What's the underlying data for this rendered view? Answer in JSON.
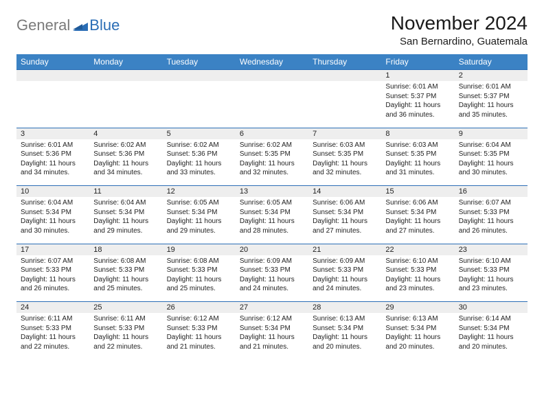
{
  "logo": {
    "part1": "General",
    "part2": "Blue"
  },
  "colors": {
    "header_bg": "#3b82c4",
    "header_text": "#ffffff",
    "daynum_bg": "#eeeeee",
    "row_border": "#2a6db5",
    "logo_gray": "#7a7a7a",
    "logo_blue": "#2a6db5"
  },
  "title": "November 2024",
  "location": "San Bernardino, Guatemala",
  "weekdays": [
    "Sunday",
    "Monday",
    "Tuesday",
    "Wednesday",
    "Thursday",
    "Friday",
    "Saturday"
  ],
  "weeks": [
    {
      "nums": [
        "",
        "",
        "",
        "",
        "",
        "1",
        "2"
      ],
      "cells": [
        {},
        {},
        {},
        {},
        {},
        {
          "sunrise": "Sunrise: 6:01 AM",
          "sunset": "Sunset: 5:37 PM",
          "daylight": "Daylight: 11 hours and 36 minutes."
        },
        {
          "sunrise": "Sunrise: 6:01 AM",
          "sunset": "Sunset: 5:37 PM",
          "daylight": "Daylight: 11 hours and 35 minutes."
        }
      ]
    },
    {
      "nums": [
        "3",
        "4",
        "5",
        "6",
        "7",
        "8",
        "9"
      ],
      "cells": [
        {
          "sunrise": "Sunrise: 6:01 AM",
          "sunset": "Sunset: 5:36 PM",
          "daylight": "Daylight: 11 hours and 34 minutes."
        },
        {
          "sunrise": "Sunrise: 6:02 AM",
          "sunset": "Sunset: 5:36 PM",
          "daylight": "Daylight: 11 hours and 34 minutes."
        },
        {
          "sunrise": "Sunrise: 6:02 AM",
          "sunset": "Sunset: 5:36 PM",
          "daylight": "Daylight: 11 hours and 33 minutes."
        },
        {
          "sunrise": "Sunrise: 6:02 AM",
          "sunset": "Sunset: 5:35 PM",
          "daylight": "Daylight: 11 hours and 32 minutes."
        },
        {
          "sunrise": "Sunrise: 6:03 AM",
          "sunset": "Sunset: 5:35 PM",
          "daylight": "Daylight: 11 hours and 32 minutes."
        },
        {
          "sunrise": "Sunrise: 6:03 AM",
          "sunset": "Sunset: 5:35 PM",
          "daylight": "Daylight: 11 hours and 31 minutes."
        },
        {
          "sunrise": "Sunrise: 6:04 AM",
          "sunset": "Sunset: 5:35 PM",
          "daylight": "Daylight: 11 hours and 30 minutes."
        }
      ]
    },
    {
      "nums": [
        "10",
        "11",
        "12",
        "13",
        "14",
        "15",
        "16"
      ],
      "cells": [
        {
          "sunrise": "Sunrise: 6:04 AM",
          "sunset": "Sunset: 5:34 PM",
          "daylight": "Daylight: 11 hours and 30 minutes."
        },
        {
          "sunrise": "Sunrise: 6:04 AM",
          "sunset": "Sunset: 5:34 PM",
          "daylight": "Daylight: 11 hours and 29 minutes."
        },
        {
          "sunrise": "Sunrise: 6:05 AM",
          "sunset": "Sunset: 5:34 PM",
          "daylight": "Daylight: 11 hours and 29 minutes."
        },
        {
          "sunrise": "Sunrise: 6:05 AM",
          "sunset": "Sunset: 5:34 PM",
          "daylight": "Daylight: 11 hours and 28 minutes."
        },
        {
          "sunrise": "Sunrise: 6:06 AM",
          "sunset": "Sunset: 5:34 PM",
          "daylight": "Daylight: 11 hours and 27 minutes."
        },
        {
          "sunrise": "Sunrise: 6:06 AM",
          "sunset": "Sunset: 5:34 PM",
          "daylight": "Daylight: 11 hours and 27 minutes."
        },
        {
          "sunrise": "Sunrise: 6:07 AM",
          "sunset": "Sunset: 5:33 PM",
          "daylight": "Daylight: 11 hours and 26 minutes."
        }
      ]
    },
    {
      "nums": [
        "17",
        "18",
        "19",
        "20",
        "21",
        "22",
        "23"
      ],
      "cells": [
        {
          "sunrise": "Sunrise: 6:07 AM",
          "sunset": "Sunset: 5:33 PM",
          "daylight": "Daylight: 11 hours and 26 minutes."
        },
        {
          "sunrise": "Sunrise: 6:08 AM",
          "sunset": "Sunset: 5:33 PM",
          "daylight": "Daylight: 11 hours and 25 minutes."
        },
        {
          "sunrise": "Sunrise: 6:08 AM",
          "sunset": "Sunset: 5:33 PM",
          "daylight": "Daylight: 11 hours and 25 minutes."
        },
        {
          "sunrise": "Sunrise: 6:09 AM",
          "sunset": "Sunset: 5:33 PM",
          "daylight": "Daylight: 11 hours and 24 minutes."
        },
        {
          "sunrise": "Sunrise: 6:09 AM",
          "sunset": "Sunset: 5:33 PM",
          "daylight": "Daylight: 11 hours and 24 minutes."
        },
        {
          "sunrise": "Sunrise: 6:10 AM",
          "sunset": "Sunset: 5:33 PM",
          "daylight": "Daylight: 11 hours and 23 minutes."
        },
        {
          "sunrise": "Sunrise: 6:10 AM",
          "sunset": "Sunset: 5:33 PM",
          "daylight": "Daylight: 11 hours and 23 minutes."
        }
      ]
    },
    {
      "nums": [
        "24",
        "25",
        "26",
        "27",
        "28",
        "29",
        "30"
      ],
      "cells": [
        {
          "sunrise": "Sunrise: 6:11 AM",
          "sunset": "Sunset: 5:33 PM",
          "daylight": "Daylight: 11 hours and 22 minutes."
        },
        {
          "sunrise": "Sunrise: 6:11 AM",
          "sunset": "Sunset: 5:33 PM",
          "daylight": "Daylight: 11 hours and 22 minutes."
        },
        {
          "sunrise": "Sunrise: 6:12 AM",
          "sunset": "Sunset: 5:33 PM",
          "daylight": "Daylight: 11 hours and 21 minutes."
        },
        {
          "sunrise": "Sunrise: 6:12 AM",
          "sunset": "Sunset: 5:34 PM",
          "daylight": "Daylight: 11 hours and 21 minutes."
        },
        {
          "sunrise": "Sunrise: 6:13 AM",
          "sunset": "Sunset: 5:34 PM",
          "daylight": "Daylight: 11 hours and 20 minutes."
        },
        {
          "sunrise": "Sunrise: 6:13 AM",
          "sunset": "Sunset: 5:34 PM",
          "daylight": "Daylight: 11 hours and 20 minutes."
        },
        {
          "sunrise": "Sunrise: 6:14 AM",
          "sunset": "Sunset: 5:34 PM",
          "daylight": "Daylight: 11 hours and 20 minutes."
        }
      ]
    }
  ]
}
